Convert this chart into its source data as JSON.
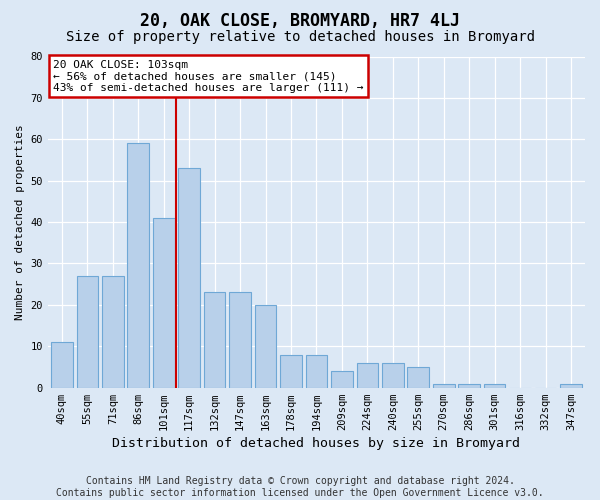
{
  "title": "20, OAK CLOSE, BROMYARD, HR7 4LJ",
  "subtitle": "Size of property relative to detached houses in Bromyard",
  "xlabel": "Distribution of detached houses by size in Bromyard",
  "ylabel": "Number of detached properties",
  "categories": [
    "40sqm",
    "55sqm",
    "71sqm",
    "86sqm",
    "101sqm",
    "117sqm",
    "132sqm",
    "147sqm",
    "163sqm",
    "178sqm",
    "194sqm",
    "209sqm",
    "224sqm",
    "240sqm",
    "255sqm",
    "270sqm",
    "286sqm",
    "301sqm",
    "316sqm",
    "332sqm",
    "347sqm"
  ],
  "values": [
    11,
    27,
    27,
    59,
    41,
    53,
    23,
    23,
    20,
    8,
    8,
    4,
    6,
    6,
    5,
    1,
    1,
    1,
    0,
    0,
    1
  ],
  "bar_color": "#b8d0ea",
  "bar_edge_color": "#6fa8d6",
  "red_line_x": 4.5,
  "ylim": [
    0,
    80
  ],
  "yticks": [
    0,
    10,
    20,
    30,
    40,
    50,
    60,
    70,
    80
  ],
  "annotation_line1": "20 OAK CLOSE: 103sqm",
  "annotation_line2": "← 56% of detached houses are smaller (145)",
  "annotation_line3": "43% of semi-detached houses are larger (111) →",
  "annotation_box_color": "#ffffff",
  "annotation_box_edge": "#cc0000",
  "background_color": "#dce8f5",
  "grid_color": "#ffffff",
  "title_fontsize": 12,
  "subtitle_fontsize": 10,
  "ylabel_fontsize": 8,
  "xlabel_fontsize": 9.5,
  "tick_fontsize": 7.5,
  "footer_line1": "Contains HM Land Registry data © Crown copyright and database right 2024.",
  "footer_line2": "Contains public sector information licensed under the Open Government Licence v3.0.",
  "footer_fontsize": 7
}
